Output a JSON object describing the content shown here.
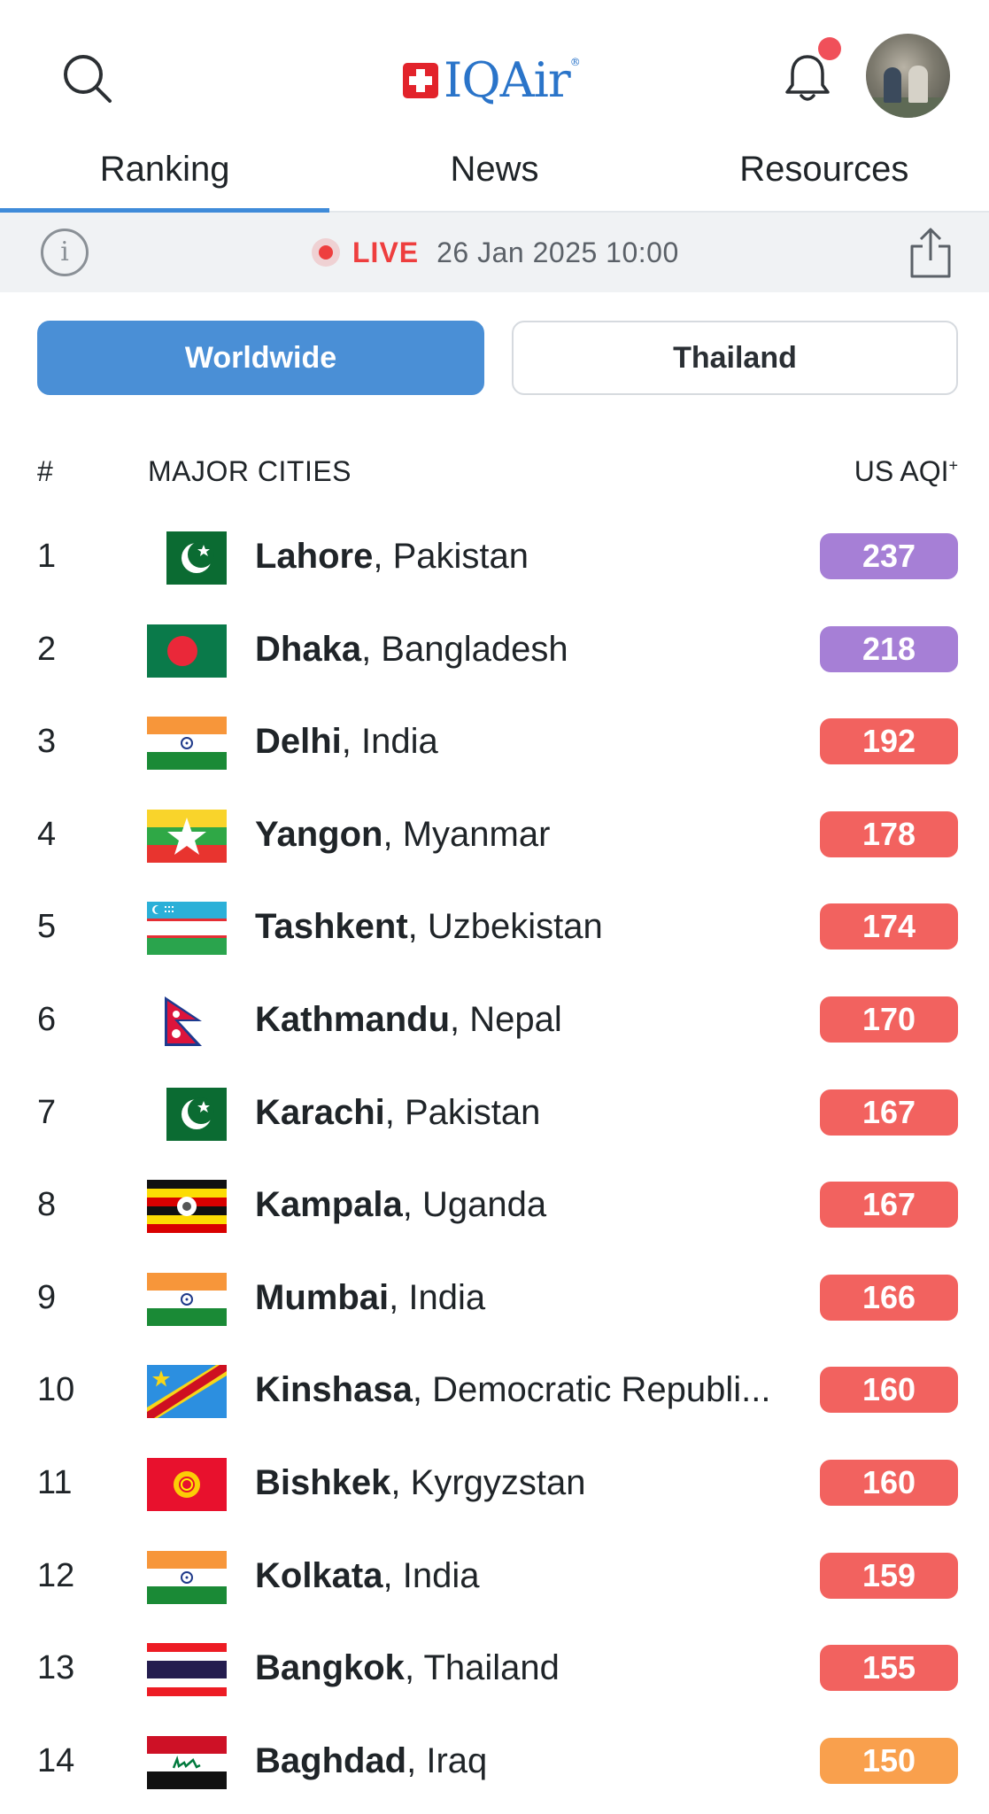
{
  "header": {
    "logo_text": "IQAir",
    "logo_mark": "®",
    "icons": {
      "search": "search-icon",
      "notifications": "bell-icon",
      "avatar": "avatar"
    },
    "colors": {
      "brand_blue": "#2a74c9",
      "brand_red": "#e2232b",
      "badge_red": "#f0505a"
    }
  },
  "tabs": [
    {
      "label": "Ranking",
      "active": true
    },
    {
      "label": "News",
      "active": false
    },
    {
      "label": "Resources",
      "active": false
    }
  ],
  "live_bar": {
    "status": "LIVE",
    "timestamp": "26 Jan 2025 10:00",
    "info_glyph": "i"
  },
  "scope_toggle": {
    "options": [
      "Worldwide",
      "Thailand"
    ],
    "selected": "Worldwide"
  },
  "table": {
    "headers": {
      "rank": "#",
      "city": "MAJOR CITIES",
      "aqi": "US AQI",
      "aqi_mark": "+"
    },
    "rows": [
      {
        "rank": "1",
        "city": "Lahore",
        "country": "Pakistan",
        "aqi": "237",
        "color": "#a67fd6",
        "flag": "pakistan"
      },
      {
        "rank": "2",
        "city": "Dhaka",
        "country": "Bangladesh",
        "aqi": "218",
        "color": "#a67fd6",
        "flag": "bangladesh"
      },
      {
        "rank": "3",
        "city": "Delhi",
        "country": "India",
        "aqi": "192",
        "color": "#f2625f",
        "flag": "india"
      },
      {
        "rank": "4",
        "city": "Yangon",
        "country": "Myanmar",
        "aqi": "178",
        "color": "#f2625f",
        "flag": "myanmar"
      },
      {
        "rank": "5",
        "city": "Tashkent",
        "country": "Uzbekistan",
        "aqi": "174",
        "color": "#f2625f",
        "flag": "uzbekistan"
      },
      {
        "rank": "6",
        "city": "Kathmandu",
        "country": "Nepal",
        "aqi": "170",
        "color": "#f2625f",
        "flag": "nepal"
      },
      {
        "rank": "7",
        "city": "Karachi",
        "country": "Pakistan",
        "aqi": "167",
        "color": "#f2625f",
        "flag": "pakistan"
      },
      {
        "rank": "8",
        "city": "Kampala",
        "country": "Uganda",
        "aqi": "167",
        "color": "#f2625f",
        "flag": "uganda"
      },
      {
        "rank": "9",
        "city": "Mumbai",
        "country": "India",
        "aqi": "166",
        "color": "#f2625f",
        "flag": "india"
      },
      {
        "rank": "10",
        "city": "Kinshasa",
        "country": "Democratic Republi...",
        "aqi": "160",
        "color": "#f2625f",
        "flag": "drc"
      },
      {
        "rank": "11",
        "city": "Bishkek",
        "country": "Kyrgyzstan",
        "aqi": "160",
        "color": "#f2625f",
        "flag": "kyrgyzstan"
      },
      {
        "rank": "12",
        "city": "Kolkata",
        "country": "India",
        "aqi": "159",
        "color": "#f2625f",
        "flag": "india"
      },
      {
        "rank": "13",
        "city": "Bangkok",
        "country": "Thailand",
        "aqi": "155",
        "color": "#f2625f",
        "flag": "thailand"
      },
      {
        "rank": "14",
        "city": "Baghdad",
        "country": "Iraq",
        "aqi": "150",
        "color": "#f9a04d",
        "flag": "iraq"
      }
    ]
  }
}
